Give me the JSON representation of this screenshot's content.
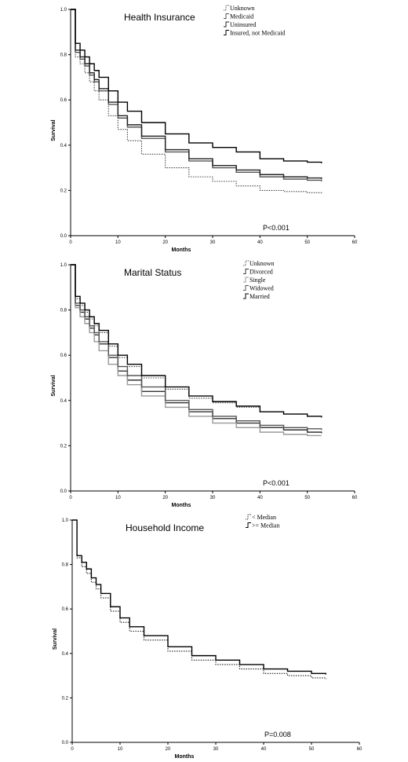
{
  "chart_data": [
    {
      "type": "line",
      "title": "Health Insurance",
      "xlabel": "Months",
      "ylabel": "Survival",
      "xlim": [
        0,
        60
      ],
      "ylim": [
        0,
        1
      ],
      "xticks": [
        0,
        10,
        20,
        30,
        40,
        50,
        60
      ],
      "yticks": [
        0.0,
        0.2,
        0.4,
        0.6,
        0.8,
        1.0
      ],
      "xtick_labels": [
        "0",
        "10",
        "20",
        "30",
        "40",
        "50",
        "60"
      ],
      "ytick_labels": [
        "0.0",
        "0.2",
        "0.4",
        "0.6",
        "0.8",
        "1.0"
      ],
      "annotation": "P<0.001",
      "legend_placement": "top-right",
      "series": [
        {
          "name": "Unknown",
          "style": "dotted",
          "color": "#444444",
          "x": [
            0,
            1,
            2,
            3,
            4,
            5,
            6,
            8,
            10,
            12,
            15,
            20,
            25,
            30,
            35,
            40,
            45,
            50,
            53
          ],
          "y": [
            1.0,
            0.79,
            0.76,
            0.72,
            0.68,
            0.64,
            0.6,
            0.53,
            0.47,
            0.42,
            0.36,
            0.3,
            0.26,
            0.24,
            0.22,
            0.2,
            0.195,
            0.19,
            0.185
          ]
        },
        {
          "name": "Medicaid",
          "style": "solid",
          "color": "#555555",
          "x": [
            0,
            1,
            2,
            3,
            4,
            5,
            6,
            8,
            10,
            12,
            15,
            20,
            25,
            30,
            35,
            40,
            45,
            50,
            53
          ],
          "y": [
            1.0,
            0.81,
            0.78,
            0.75,
            0.71,
            0.68,
            0.64,
            0.58,
            0.52,
            0.48,
            0.43,
            0.37,
            0.33,
            0.3,
            0.28,
            0.26,
            0.25,
            0.245,
            0.24
          ]
        },
        {
          "name": "Uninsured",
          "style": "solid",
          "color": "#222222",
          "x": [
            0,
            1,
            2,
            3,
            4,
            5,
            6,
            8,
            10,
            12,
            15,
            20,
            25,
            30,
            35,
            40,
            45,
            50,
            53
          ],
          "y": [
            1.0,
            0.82,
            0.79,
            0.76,
            0.72,
            0.69,
            0.65,
            0.59,
            0.53,
            0.49,
            0.44,
            0.38,
            0.34,
            0.31,
            0.29,
            0.27,
            0.26,
            0.255,
            0.25
          ]
        },
        {
          "name": "Insured, not Medicaid",
          "style": "solid",
          "color": "#000000",
          "x": [
            0,
            1,
            2,
            3,
            4,
            5,
            6,
            8,
            10,
            12,
            15,
            20,
            25,
            30,
            35,
            40,
            45,
            50,
            53
          ],
          "y": [
            1.0,
            0.85,
            0.82,
            0.79,
            0.76,
            0.73,
            0.7,
            0.64,
            0.59,
            0.55,
            0.5,
            0.45,
            0.41,
            0.39,
            0.37,
            0.34,
            0.33,
            0.325,
            0.32
          ]
        }
      ]
    },
    {
      "type": "line",
      "title": "Marital Status",
      "xlabel": "Months",
      "ylabel": "Survival",
      "xlim": [
        0,
        60
      ],
      "ylim": [
        0,
        1
      ],
      "xticks": [
        0,
        10,
        20,
        30,
        40,
        50,
        60
      ],
      "yticks": [
        0.0,
        0.2,
        0.4,
        0.6,
        0.8,
        1.0
      ],
      "xtick_labels": [
        "0",
        "10",
        "20",
        "30",
        "40",
        "50",
        "60"
      ],
      "ytick_labels": [
        "0.0",
        "0.2",
        "0.4",
        "0.6",
        "0.8",
        "1.0"
      ],
      "annotation": "P<0.001",
      "legend_placement": "top-right",
      "series": [
        {
          "name": "Unknown",
          "style": "dotted",
          "color": "#444444",
          "x": [
            0,
            1,
            2,
            3,
            4,
            5,
            6,
            8,
            10,
            12,
            15,
            20,
            25,
            30,
            35,
            40,
            45,
            50,
            53
          ],
          "y": [
            1.0,
            0.85,
            0.82,
            0.79,
            0.76,
            0.73,
            0.7,
            0.64,
            0.59,
            0.55,
            0.5,
            0.45,
            0.41,
            0.39,
            0.37,
            0.35,
            0.34,
            0.33,
            0.325
          ]
        },
        {
          "name": "Divorced",
          "style": "solid",
          "color": "#333333",
          "x": [
            0,
            1,
            2,
            3,
            4,
            5,
            6,
            8,
            10,
            12,
            15,
            20,
            25,
            30,
            35,
            40,
            45,
            50,
            53
          ],
          "y": [
            1.0,
            0.82,
            0.79,
            0.76,
            0.72,
            0.69,
            0.65,
            0.59,
            0.53,
            0.49,
            0.44,
            0.39,
            0.35,
            0.32,
            0.3,
            0.28,
            0.27,
            0.26,
            0.255
          ]
        },
        {
          "name": "Single",
          "style": "solid",
          "color": "#999999",
          "x": [
            0,
            1,
            2,
            3,
            4,
            5,
            6,
            8,
            10,
            12,
            15,
            20,
            25,
            30,
            35,
            40,
            45,
            50,
            53
          ],
          "y": [
            1.0,
            0.81,
            0.77,
            0.74,
            0.7,
            0.66,
            0.62,
            0.56,
            0.51,
            0.47,
            0.42,
            0.37,
            0.33,
            0.3,
            0.28,
            0.26,
            0.25,
            0.245,
            0.245
          ]
        },
        {
          "name": "Widowed",
          "style": "solid",
          "color": "#555555",
          "x": [
            0,
            1,
            2,
            3,
            4,
            5,
            6,
            8,
            10,
            12,
            15,
            20,
            25,
            30,
            35,
            40,
            45,
            50,
            53
          ],
          "y": [
            1.0,
            0.83,
            0.8,
            0.77,
            0.73,
            0.7,
            0.66,
            0.6,
            0.55,
            0.51,
            0.46,
            0.4,
            0.36,
            0.33,
            0.31,
            0.29,
            0.28,
            0.275,
            0.27
          ]
        },
        {
          "name": "Married",
          "style": "solid",
          "color": "#000000",
          "x": [
            0,
            1,
            2,
            3,
            4,
            5,
            6,
            8,
            10,
            12,
            15,
            20,
            25,
            30,
            35,
            40,
            45,
            50,
            53
          ],
          "y": [
            1.0,
            0.86,
            0.83,
            0.8,
            0.77,
            0.74,
            0.71,
            0.65,
            0.6,
            0.56,
            0.51,
            0.46,
            0.42,
            0.395,
            0.375,
            0.35,
            0.34,
            0.33,
            0.325
          ]
        }
      ]
    },
    {
      "type": "line",
      "title": "Household Income",
      "xlabel": "Months",
      "ylabel": "Survival",
      "xlim": [
        0,
        60
      ],
      "ylim": [
        0,
        1
      ],
      "xticks": [
        0,
        10,
        20,
        30,
        40,
        50,
        60
      ],
      "yticks": [
        0.0,
        0.2,
        0.4,
        0.6,
        0.8,
        1.0
      ],
      "xtick_labels": [
        "0",
        "10",
        "20",
        "30",
        "40",
        "50",
        "60"
      ],
      "ytick_labels": [
        "0.0",
        "0.2",
        "0.4",
        "0.6",
        "0.8",
        "1.0"
      ],
      "annotation": "P=0.008",
      "legend_placement": "top-right",
      "series": [
        {
          "name": "< Median",
          "style": "dotted",
          "color": "#222222",
          "x": [
            0,
            1,
            2,
            3,
            4,
            5,
            6,
            8,
            10,
            12,
            15,
            20,
            25,
            30,
            35,
            40,
            45,
            50,
            53
          ],
          "y": [
            1.0,
            0.83,
            0.79,
            0.76,
            0.72,
            0.69,
            0.65,
            0.59,
            0.54,
            0.5,
            0.46,
            0.41,
            0.37,
            0.35,
            0.33,
            0.31,
            0.3,
            0.29,
            0.285
          ]
        },
        {
          "name": ">= Median",
          "style": "solid",
          "color": "#000000",
          "x": [
            0,
            1,
            2,
            3,
            4,
            5,
            6,
            8,
            10,
            12,
            15,
            20,
            25,
            30,
            35,
            40,
            45,
            50,
            53
          ],
          "y": [
            1.0,
            0.84,
            0.81,
            0.78,
            0.74,
            0.71,
            0.67,
            0.61,
            0.56,
            0.52,
            0.48,
            0.43,
            0.39,
            0.37,
            0.35,
            0.33,
            0.32,
            0.31,
            0.305
          ]
        }
      ]
    }
  ]
}
